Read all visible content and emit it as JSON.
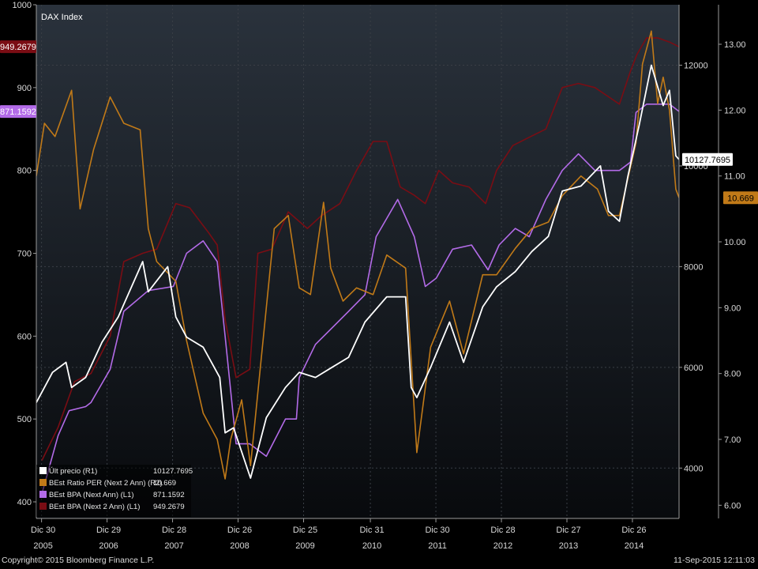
{
  "colors": {
    "price": "#ffffff",
    "per": "#c17a18",
    "bpa_next": "#b36be8",
    "bpa_next2": "#7a0d14",
    "grid": "#3a3f46",
    "axis_text": "#d8d8d8",
    "bg_top": "#2a323c",
    "bg_bottom": "#080a0d"
  },
  "footer": {
    "copyright": "Copyright© 2015 Bloomberg Finance L.P.",
    "timestamp": "11-Sep-2015 12:11:03"
  },
  "chart_data": {
    "type": "line",
    "title": "DAX Index",
    "grid": true,
    "legend_position": "bottom-left",
    "x_range": [
      "2005-12-01",
      "2015-09-11"
    ],
    "x_ticks": [
      {
        "date": "2005-12-30",
        "day": "Dic 30",
        "year": "2005"
      },
      {
        "date": "2006-12-29",
        "day": "Dic 29",
        "year": "2006"
      },
      {
        "date": "2007-12-28",
        "day": "Dic 28",
        "year": "2007"
      },
      {
        "date": "2008-12-26",
        "day": "Dic 26",
        "year": "2008"
      },
      {
        "date": "2009-12-25",
        "day": "Dic 25",
        "year": "2009"
      },
      {
        "date": "2010-12-31",
        "day": "Dic 31",
        "year": "2010"
      },
      {
        "date": "2011-12-30",
        "day": "Dic 30",
        "year": "2011"
      },
      {
        "date": "2012-12-28",
        "day": "Dic 28",
        "year": "2012"
      },
      {
        "date": "2013-12-27",
        "day": "Dic 27",
        "year": "2013"
      },
      {
        "date": "2014-12-26",
        "day": "Dic 26",
        "year": "2014"
      }
    ],
    "axes": {
      "L1": {
        "range": [
          380,
          1000
        ],
        "ticks": [
          "400",
          "500",
          "600",
          "700",
          "800",
          "900",
          "1000"
        ]
      },
      "R1": {
        "range": [
          3000,
          13200
        ],
        "ticks": [
          "4000",
          "6000",
          "8000",
          "10000",
          "12000"
        ]
      },
      "R2": {
        "range": [
          5.8,
          13.6
        ],
        "ticks": [
          "6.00",
          "7.00",
          "8.00",
          "9.00",
          "10.00",
          "11.00",
          "12.00",
          "13.00"
        ]
      }
    },
    "last_value_tags": {
      "L1_next2": "949.2679",
      "L1_next": "871.1592",
      "R1_price": "10127.7695",
      "R2_per": "10.669"
    },
    "series": [
      {
        "name": "Últ precio  (R1)",
        "axis": "R1",
        "color_key": "price",
        "last": "10127.7695",
        "x": [
          "2005-12-01",
          "2006-03-01",
          "2006-05-15",
          "2006-06-15",
          "2006-09-01",
          "2006-12-01",
          "2007-03-01",
          "2007-07-15",
          "2007-08-15",
          "2007-12-01",
          "2008-01-15",
          "2008-03-15",
          "2008-06-15",
          "2008-09-15",
          "2008-10-15",
          "2008-12-01",
          "2009-03-05",
          "2009-06-01",
          "2009-09-15",
          "2009-12-01",
          "2010-03-01",
          "2010-06-01",
          "2010-09-01",
          "2010-12-01",
          "2011-04-01",
          "2011-07-15",
          "2011-08-15",
          "2011-09-15",
          "2011-12-01",
          "2012-03-15",
          "2012-06-01",
          "2012-09-15",
          "2012-12-01",
          "2013-03-15",
          "2013-06-15",
          "2013-09-15",
          "2013-12-01",
          "2014-03-15",
          "2014-07-01",
          "2014-08-15",
          "2014-10-15",
          "2014-12-01",
          "2015-02-01",
          "2015-04-10",
          "2015-06-15",
          "2015-07-20",
          "2015-08-24",
          "2015-09-11"
        ],
        "y": [
          5300,
          5900,
          6100,
          5600,
          5800,
          6500,
          7000,
          8100,
          7500,
          8000,
          7000,
          6600,
          6400,
          5800,
          4700,
          4800,
          3800,
          5000,
          5600,
          5900,
          5800,
          6000,
          6200,
          6900,
          7400,
          7400,
          5600,
          5400,
          6000,
          6900,
          6100,
          7200,
          7600,
          7900,
          8300,
          8600,
          9500,
          9600,
          10000,
          9100,
          8900,
          9800,
          10800,
          12000,
          11200,
          11500,
          10200,
          10128
        ]
      },
      {
        "name": "BEst Ratio PER (Next 2 Ann)  (R2)",
        "axis": "R2",
        "color_key": "per",
        "last": "10.669",
        "x": [
          "2005-12-01",
          "2006-01-15",
          "2006-03-15",
          "2006-06-15",
          "2006-08-01",
          "2006-10-15",
          "2007-01-15",
          "2007-04-01",
          "2007-07-01",
          "2007-08-15",
          "2007-10-01",
          "2008-01-15",
          "2008-03-15",
          "2008-06-15",
          "2008-09-01",
          "2008-10-15",
          "2008-11-15",
          "2009-01-15",
          "2009-03-05",
          "2009-06-01",
          "2009-07-15",
          "2009-10-01",
          "2009-12-01",
          "2010-02-01",
          "2010-04-15",
          "2010-05-25",
          "2010-08-01",
          "2010-10-15",
          "2011-01-15",
          "2011-04-01",
          "2011-07-15",
          "2011-09-15",
          "2011-12-01",
          "2012-03-15",
          "2012-06-01",
          "2012-09-15",
          "2012-12-01",
          "2013-03-15",
          "2013-06-15",
          "2013-09-15",
          "2013-12-01",
          "2014-03-15",
          "2014-06-15",
          "2014-08-15",
          "2014-10-15",
          "2015-01-15",
          "2015-02-20",
          "2015-04-10",
          "2015-05-15",
          "2015-06-15",
          "2015-07-20",
          "2015-08-24",
          "2015-09-11"
        ],
        "y": [
          11.0,
          11.8,
          11.6,
          12.3,
          10.5,
          11.4,
          12.2,
          11.8,
          11.7,
          10.2,
          9.7,
          9.4,
          8.5,
          7.4,
          7.0,
          6.4,
          7.0,
          7.6,
          6.6,
          9.0,
          10.2,
          10.4,
          9.3,
          9.2,
          10.6,
          9.6,
          9.1,
          9.3,
          9.2,
          9.8,
          9.6,
          6.8,
          8.4,
          9.1,
          8.3,
          9.5,
          9.5,
          9.9,
          10.2,
          10.3,
          10.7,
          11.0,
          10.8,
          10.4,
          10.4,
          11.5,
          12.7,
          13.2,
          12.1,
          12.5,
          12.0,
          10.8,
          10.669
        ]
      },
      {
        "name": "BEst BPA (Next Ann)  (L1)",
        "axis": "L1",
        "color_key": "bpa_next",
        "last": "871.1592",
        "x": [
          "2006-01-01",
          "2006-04-01",
          "2006-06-01",
          "2006-09-01",
          "2006-10-01",
          "2007-01-15",
          "2007-04-01",
          "2007-08-15",
          "2008-01-01",
          "2008-03-15",
          "2008-06-15",
          "2008-09-01",
          "2008-10-15",
          "2008-12-15",
          "2009-03-01",
          "2009-06-01",
          "2009-09-15",
          "2009-11-15",
          "2009-12-01",
          "2010-03-01",
          "2010-06-01",
          "2010-09-01",
          "2010-12-01",
          "2011-02-01",
          "2011-06-01",
          "2011-09-01",
          "2011-11-01",
          "2012-01-01",
          "2012-04-01",
          "2012-07-15",
          "2012-10-15",
          "2012-12-15",
          "2013-03-15",
          "2013-06-01",
          "2013-09-01",
          "2013-12-01",
          "2014-03-01",
          "2014-06-01",
          "2014-10-15",
          "2014-12-15",
          "2015-01-15",
          "2015-03-15",
          "2015-05-15",
          "2015-07-20",
          "2015-09-11"
        ],
        "y": [
          410,
          480,
          510,
          515,
          520,
          560,
          630,
          655,
          660,
          700,
          715,
          690,
          600,
          470,
          470,
          455,
          500,
          500,
          550,
          590,
          610,
          630,
          650,
          720,
          765,
          720,
          660,
          670,
          705,
          710,
          680,
          710,
          730,
          720,
          765,
          800,
          820,
          800,
          800,
          810,
          870,
          880,
          880,
          880,
          871.2
        ]
      },
      {
        "name": "BEst BPA (Next 2 Ann)  (L1)",
        "axis": "L1",
        "color_key": "bpa_next2",
        "last": "949.2679",
        "x": [
          "2006-01-01",
          "2006-04-01",
          "2006-07-01",
          "2006-10-01",
          "2007-01-15",
          "2007-04-01",
          "2007-07-15",
          "2007-10-01",
          "2008-01-15",
          "2008-04-01",
          "2008-07-15",
          "2008-09-01",
          "2008-10-15",
          "2008-12-15",
          "2009-03-01",
          "2009-04-15",
          "2009-07-01",
          "2009-10-01",
          "2010-01-15",
          "2010-04-01",
          "2010-07-15",
          "2010-10-15",
          "2011-01-15",
          "2011-04-01",
          "2011-06-15",
          "2011-09-01",
          "2011-11-01",
          "2012-01-15",
          "2012-04-01",
          "2012-07-01",
          "2012-10-01",
          "2012-12-01",
          "2013-03-01",
          "2013-06-01",
          "2013-09-01",
          "2013-12-01",
          "2014-03-01",
          "2014-06-01",
          "2014-10-15",
          "2014-12-15",
          "2015-01-20",
          "2015-03-15",
          "2015-05-15",
          "2015-07-20",
          "2015-09-11"
        ],
        "y": [
          450,
          490,
          545,
          555,
          600,
          690,
          700,
          705,
          760,
          755,
          725,
          710,
          620,
          550,
          560,
          700,
          705,
          750,
          730,
          745,
          760,
          800,
          835,
          835,
          780,
          770,
          760,
          800,
          785,
          780,
          760,
          800,
          830,
          840,
          850,
          900,
          905,
          900,
          880,
          920,
          940,
          960,
          960,
          955,
          949.3
        ]
      }
    ]
  }
}
